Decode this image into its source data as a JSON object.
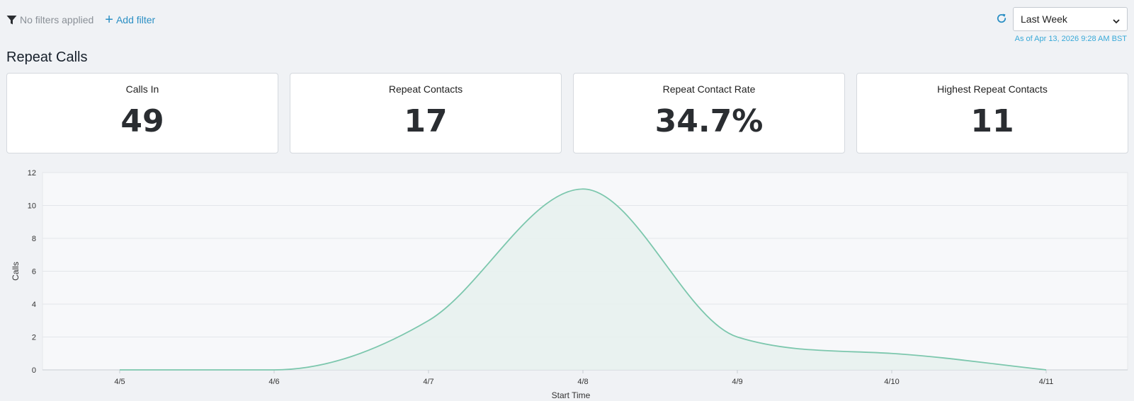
{
  "filters": {
    "status_text": "No filters applied",
    "add_label": "Add filter"
  },
  "time_range": {
    "selected": "Last Week",
    "as_of": "As of Apr 13, 2026 9:28 AM BST"
  },
  "page_title": "Repeat Calls",
  "metrics": [
    {
      "label": "Calls In",
      "value": "49"
    },
    {
      "label": "Repeat Contacts",
      "value": "17"
    },
    {
      "label": "Repeat Contact Rate",
      "value": "34.7%"
    },
    {
      "label": "Highest Repeat Contacts",
      "value": "11"
    }
  ],
  "colors": {
    "accent": "#2b8fc4",
    "series_line": "#7cc7ad",
    "series_fill": "#e7f1ee"
  },
  "icons": {
    "filter": "filter-icon",
    "add": "plus-icon",
    "refresh": "refresh-icon",
    "dropdown": "chevron-down-icon"
  },
  "chart_data": {
    "type": "area",
    "x": [
      "4/5",
      "4/6",
      "4/7",
      "4/8",
      "4/9",
      "4/10",
      "4/11"
    ],
    "series": [
      {
        "values": [
          0,
          0,
          3,
          11,
          2,
          1,
          0
        ]
      }
    ],
    "xlabel": "Start Time",
    "ylabel": "Calls",
    "ylim": [
      0,
      12
    ],
    "yticks": [
      0,
      2,
      4,
      6,
      8,
      10,
      12
    ],
    "grid": true,
    "smooth": true
  }
}
